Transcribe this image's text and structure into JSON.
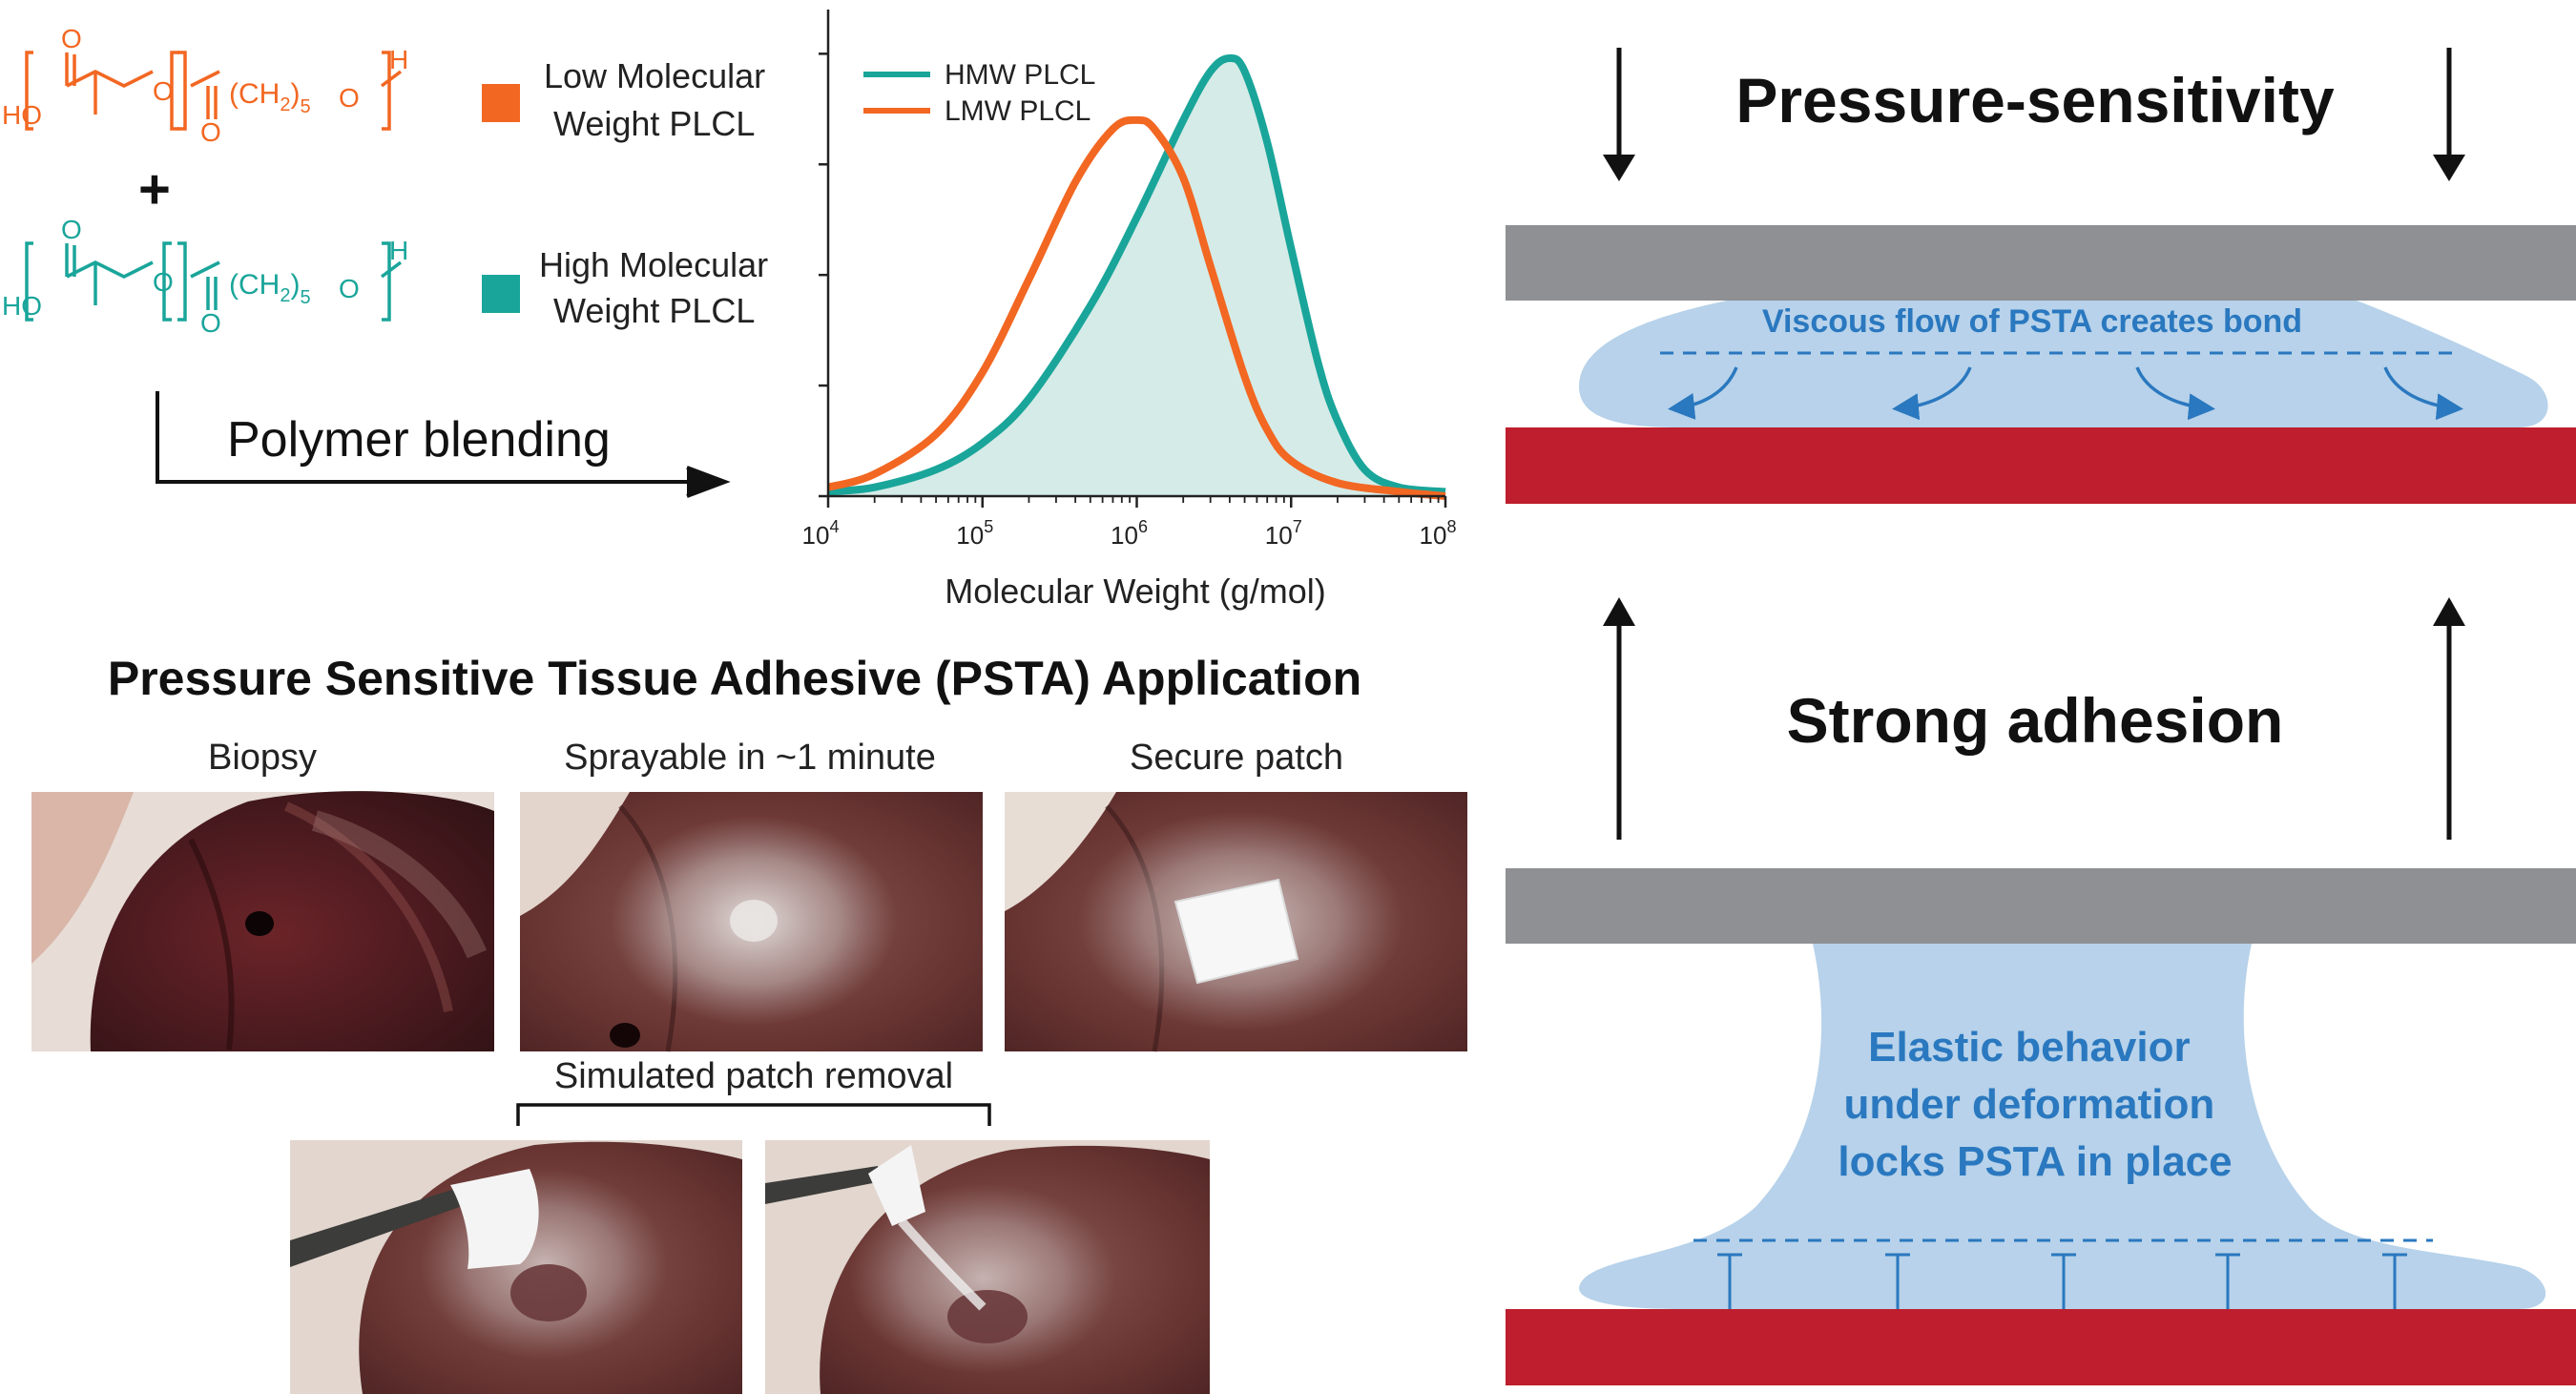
{
  "colors": {
    "lmw": "#f26722",
    "hmw": "#1aa59a",
    "hmw_fill": "#d5ebe7",
    "plate_gray": "#8f9094",
    "plate_red": "#be1e2d",
    "psta_fill": "#b7d2ea",
    "psta_text": "#2a78bf",
    "black": "#111111"
  },
  "chemistry": {
    "ho": "HO",
    "h": "H",
    "o": "O",
    "ch2_label": "(CH",
    "ch2_sub": "2",
    "ch2_close": ")",
    "ch2_count": "5",
    "plus": "+"
  },
  "legend": {
    "low": [
      "Low Molecular",
      "Weight PLCL"
    ],
    "high": [
      "High Molecular",
      "Weight PLCL"
    ]
  },
  "blending_label": "Polymer blending",
  "chart_data": {
    "type": "area",
    "xlabel": "Molecular Weight (g/mol)",
    "ylabel": "",
    "x_scale": "log",
    "xlim": [
      10000,
      100000000
    ],
    "ylim": [
      0,
      1.1
    ],
    "x_ticks": [
      {
        "base": "10",
        "exp": "4",
        "value": 10000
      },
      {
        "base": "10",
        "exp": "5",
        "value": 100000
      },
      {
        "base": "10",
        "exp": "6",
        "value": 1000000
      },
      {
        "base": "10",
        "exp": "7",
        "value": 10000000
      },
      {
        "base": "10",
        "exp": "8",
        "value": 100000000
      }
    ],
    "y_ticks": [
      0,
      0.25,
      0.5,
      0.75,
      1.0
    ],
    "legend_position": "top-left",
    "series": [
      {
        "name": "HMW PLCL",
        "color": "#1aa59a",
        "filled": true,
        "x": [
          10000,
          20000,
          50000,
          100000,
          200000,
          500000,
          1000000,
          2000000,
          3000000,
          4000000,
          5000000,
          7000000,
          10000000,
          15000000,
          20000000,
          30000000,
          50000000,
          100000000
        ],
        "y": [
          0.01,
          0.02,
          0.06,
          0.12,
          0.22,
          0.43,
          0.63,
          0.85,
          0.96,
          0.99,
          0.96,
          0.8,
          0.56,
          0.3,
          0.17,
          0.06,
          0.02,
          0.01
        ]
      },
      {
        "name": "LMW PLCL",
        "color": "#f26722",
        "filled": false,
        "x": [
          10000,
          20000,
          50000,
          100000,
          200000,
          400000,
          700000,
          1000000,
          1300000,
          2000000,
          3000000,
          5000000,
          7000000,
          10000000,
          20000000,
          50000000,
          100000000
        ],
        "y": [
          0.02,
          0.05,
          0.14,
          0.28,
          0.49,
          0.71,
          0.83,
          0.85,
          0.83,
          0.72,
          0.52,
          0.27,
          0.15,
          0.08,
          0.03,
          0.01,
          0.0
        ]
      }
    ]
  },
  "psta": {
    "title": "Pressure Sensitive Tissue Adhesive (PSTA) Application",
    "captions": [
      "Biopsy",
      "Sprayable in ~1 minute",
      "Secure patch"
    ],
    "removal_caption": "Simulated patch removal"
  },
  "mechanism": {
    "pressure_title": "Pressure-sensitivity",
    "adhesion_title": "Strong adhesion",
    "flow_text": "Viscous flow of PSTA creates bond",
    "elastic_lines": [
      "Elastic behavior",
      "under deformation",
      "locks PSTA in place"
    ]
  }
}
